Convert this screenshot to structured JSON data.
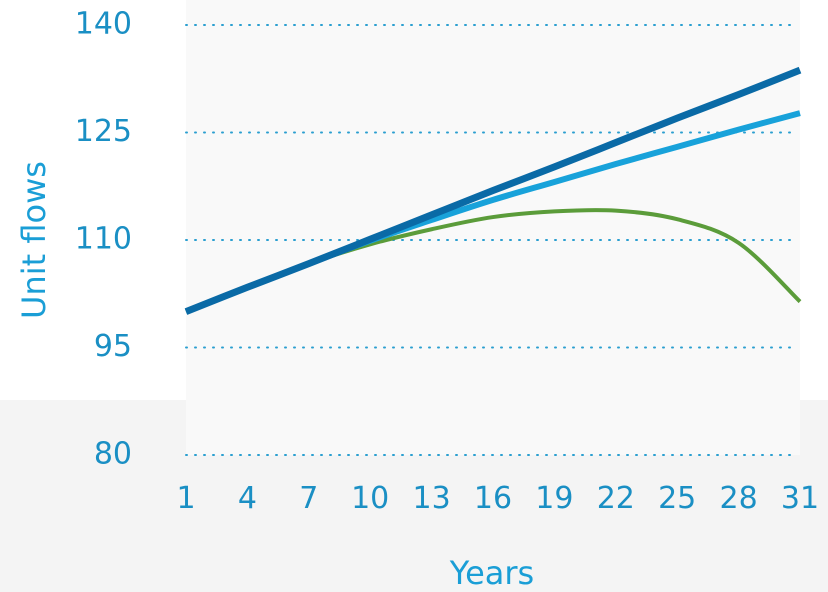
{
  "chart_data": {
    "type": "line",
    "xlabel": "Years",
    "ylabel": "Unit flows",
    "x": [
      1,
      4,
      7,
      10,
      13,
      16,
      19,
      22,
      25,
      28,
      31
    ],
    "xticks": [
      "1",
      "4",
      "7",
      "10",
      "13",
      "16",
      "19",
      "22",
      "25",
      "28",
      "31"
    ],
    "yticks": [
      "80",
      "95",
      "110",
      "125",
      "140"
    ],
    "ylim": [
      80,
      140
    ],
    "xlim": [
      1,
      31
    ],
    "grid": "horizontal dotted",
    "legend": "none",
    "series": [
      {
        "color": "#0a6aa6",
        "values": [
          100.0,
          103.4,
          106.7,
          110.1,
          113.5,
          116.9,
          120.2,
          123.6,
          127.0,
          130.3,
          133.7
        ]
      },
      {
        "color": "#18a2da",
        "values": [
          100.0,
          103.4,
          106.7,
          109.9,
          112.8,
          115.6,
          118.1,
          120.6,
          123.0,
          125.4,
          127.7
        ]
      },
      {
        "color": "#5b9c3a",
        "values": [
          100.0,
          103.4,
          106.7,
          109.4,
          111.5,
          113.2,
          114.0,
          114.1,
          112.9,
          109.6,
          101.4
        ]
      }
    ]
  }
}
